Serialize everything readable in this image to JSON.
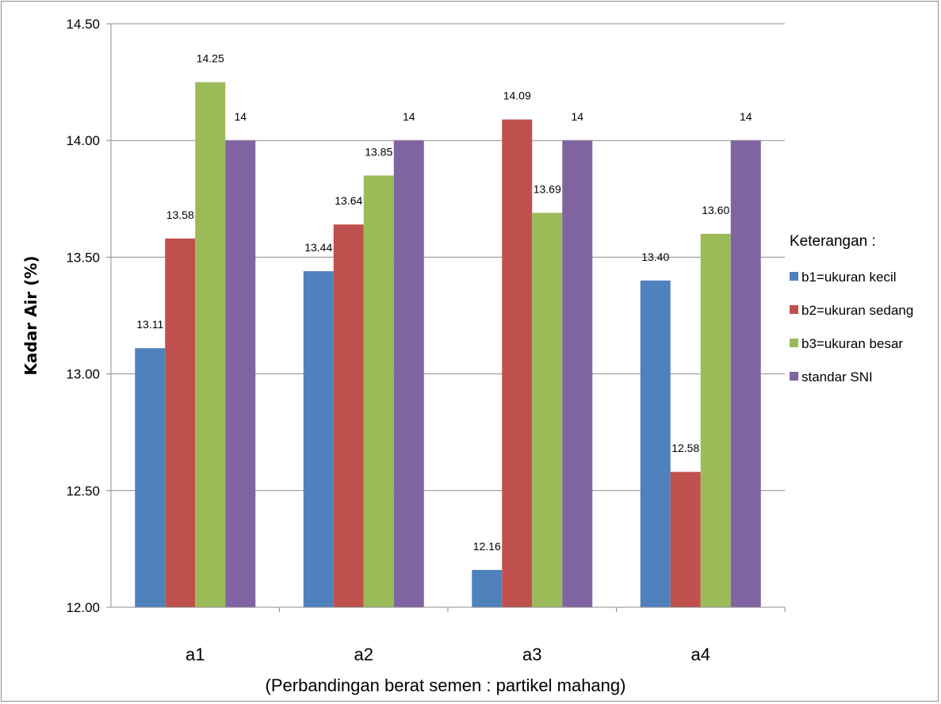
{
  "chart_data": {
    "type": "bar",
    "title": "",
    "xlabel": "(Perbandingan berat semen : partikel mahang)",
    "ylabel": "Kadar Air (%)",
    "ylim": [
      12.0,
      14.5
    ],
    "yticks": [
      12.0,
      12.5,
      13.0,
      13.5,
      14.0,
      14.5
    ],
    "ytick_labels": [
      "12.00",
      "12.50",
      "13.00",
      "13.50",
      "14.00",
      "14.50"
    ],
    "grid": true,
    "legend_position": "right",
    "legend_title": "Keterangan :",
    "categories": [
      "a1",
      "a2",
      "a3",
      "a4"
    ],
    "series": [
      {
        "name": "b1=ukuran kecil",
        "color": "#4F81BD",
        "values": [
          13.11,
          13.44,
          12.16,
          13.4
        ],
        "labels": [
          "13.11",
          "13.44",
          "12.16",
          "13.40"
        ]
      },
      {
        "name": "b2=ukuran sedang",
        "color": "#C0504D",
        "values": [
          13.58,
          13.64,
          14.09,
          12.58
        ],
        "labels": [
          "13.58",
          "13.64",
          "14.09",
          "12.58"
        ]
      },
      {
        "name": "b3=ukuran besar",
        "color": "#9BBB59",
        "values": [
          14.25,
          13.85,
          13.69,
          13.6
        ],
        "labels": [
          "14.25",
          "13.85",
          "13.69",
          "13.60"
        ]
      },
      {
        "name": "standar SNI",
        "color": "#8064A2",
        "values": [
          14,
          14,
          14,
          14
        ],
        "labels": [
          "14",
          "14",
          "14",
          "14"
        ]
      }
    ]
  }
}
